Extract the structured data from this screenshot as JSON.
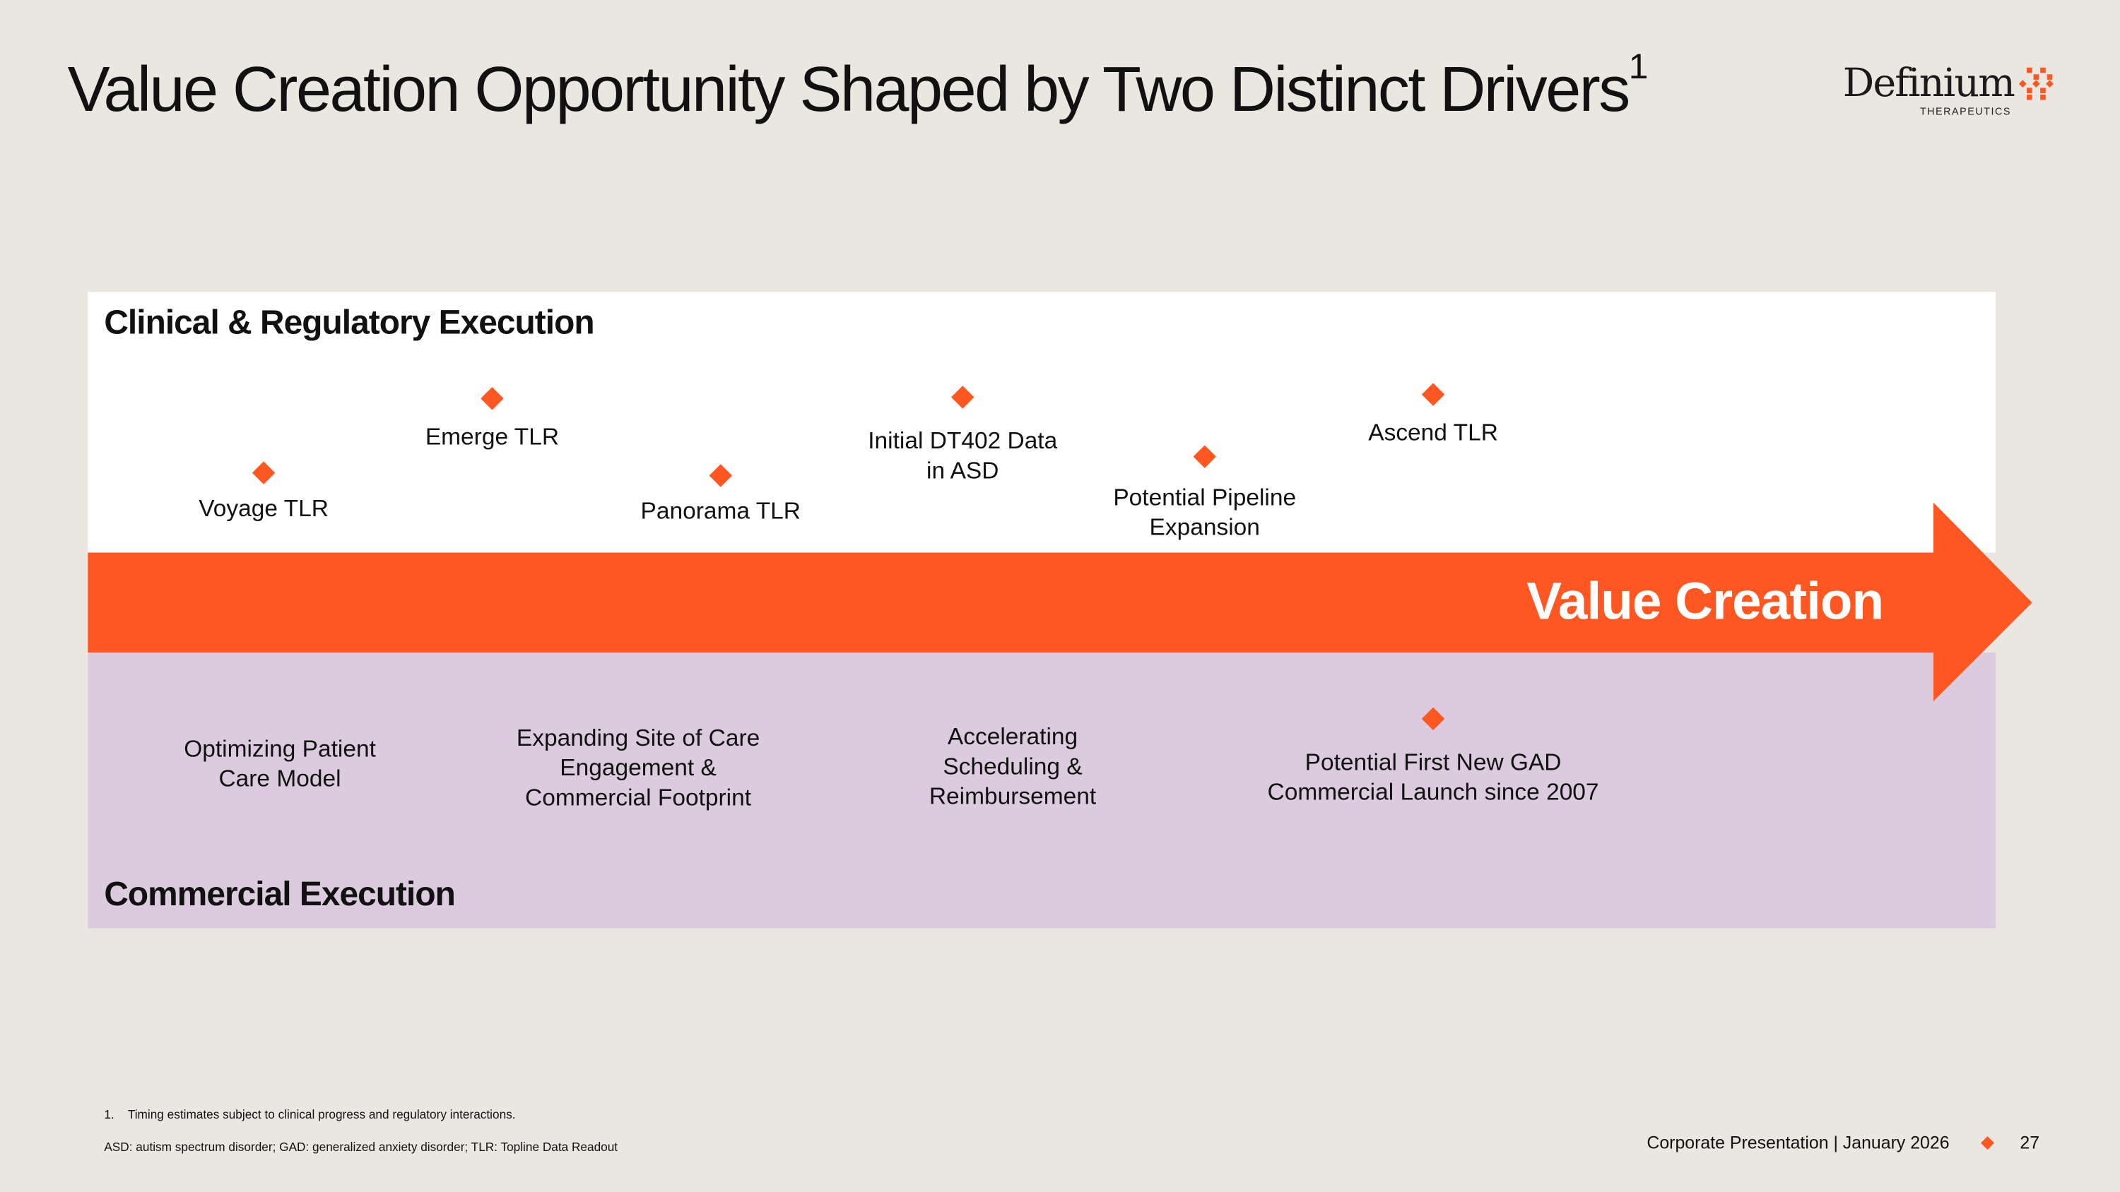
{
  "title": {
    "text": "Value Creation Opportunity Shaped by Two Distinct Drivers",
    "superscript": "1"
  },
  "logo": {
    "name": "Definium",
    "subtitle": "THERAPEUTICS"
  },
  "colors": {
    "accent": "#ff5722",
    "background": "#eae7e1",
    "commercial_panel": "#dccbdf"
  },
  "clinical": {
    "heading": "Clinical & Regulatory Execution",
    "milestones": [
      {
        "lines": [
          "Voyage TLR"
        ]
      },
      {
        "lines": [
          "Emerge TLR"
        ]
      },
      {
        "lines": [
          "Panorama TLR"
        ]
      },
      {
        "lines": [
          "Initial DT402 Data",
          "in ASD"
        ]
      },
      {
        "lines": [
          "Potential Pipeline",
          "Expansion"
        ]
      },
      {
        "lines": [
          "Ascend TLR"
        ]
      }
    ]
  },
  "arrow": {
    "label": "Value Creation"
  },
  "commercial": {
    "heading": "Commercial Execution",
    "items": [
      {
        "lines": [
          "Optimizing Patient",
          "Care Model"
        ]
      },
      {
        "lines": [
          "Expanding Site of Care",
          "Engagement &",
          "Commercial Footprint"
        ]
      },
      {
        "lines": [
          "Accelerating",
          "Scheduling &",
          "Reimbursement"
        ]
      },
      {
        "lines": [
          "Potential First New GAD",
          "Commercial Launch since 2007"
        ]
      }
    ]
  },
  "footnotes": {
    "note1_number": "1.",
    "note1": "Timing estimates subject to clinical progress and regulatory interactions.",
    "abbreviations": "ASD: autism spectrum disorder; GAD: generalized anxiety disorder; TLR: Topline Data Readout"
  },
  "footer": {
    "presentation": "Corporate Presentation | January 2026",
    "page_number": "27"
  }
}
